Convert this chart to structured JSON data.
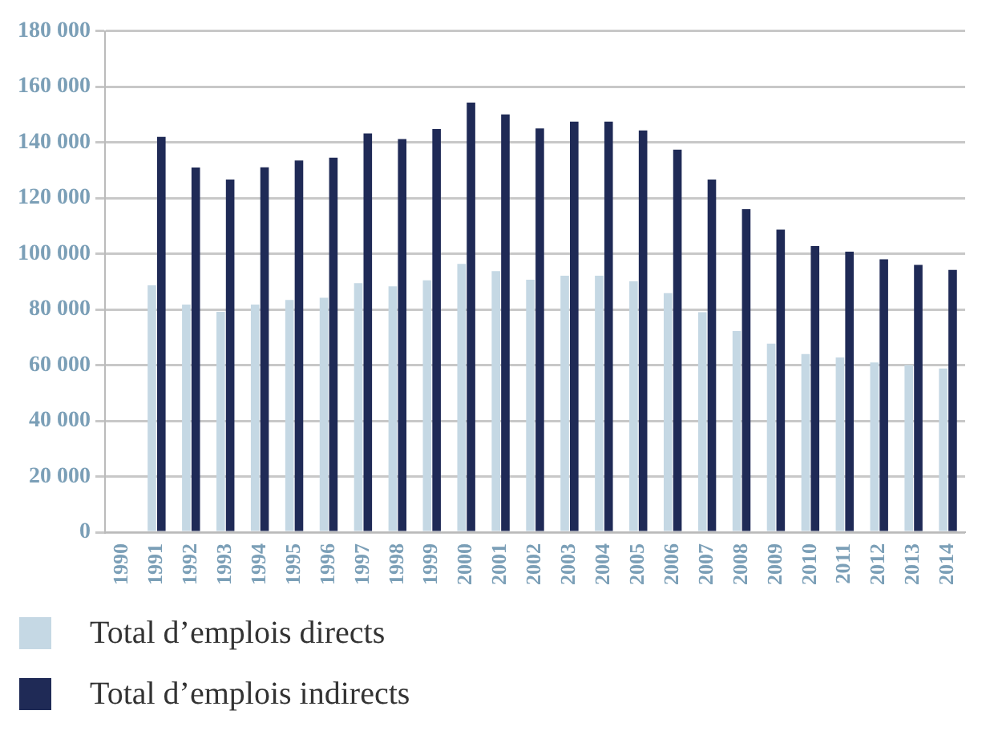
{
  "chart_data": {
    "type": "bar",
    "categories": [
      "1990",
      "1991",
      "1992",
      "1993",
      "1994",
      "1995",
      "1996",
      "1997",
      "1998",
      "1999",
      "2000",
      "2001",
      "2002",
      "2003",
      "2004",
      "2005",
      "2006",
      "2007",
      "2008",
      "2009",
      "2010",
      "2011",
      "2012",
      "2013",
      "2014"
    ],
    "series": [
      {
        "name": "Total d’emplois directs",
        "color": "#c5d8e4",
        "values": [
          null,
          88700,
          81800,
          79200,
          81800,
          83400,
          84200,
          89500,
          88300,
          90500,
          96400,
          93800,
          90700,
          92100,
          92100,
          90100,
          85900,
          79000,
          72300,
          67700,
          64000,
          62800,
          61000,
          60000,
          58800
        ]
      },
      {
        "name": "Total d’emplois indirects",
        "color": "#1f2a56",
        "values": [
          null,
          142000,
          131000,
          126700,
          131100,
          133500,
          134500,
          143200,
          141200,
          144800,
          154300,
          150100,
          145000,
          147500,
          147500,
          144300,
          137400,
          126700,
          116000,
          108700,
          102800,
          100800,
          98000,
          96000,
          94200
        ]
      }
    ],
    "ylim": [
      0,
      180000
    ],
    "yticks": [
      0,
      {
        "value": 20000,
        "label": "20 000"
      },
      {
        "value": 40000,
        "label": "40 000"
      },
      {
        "value": 60000,
        "label": "60 000"
      },
      {
        "value": 80000,
        "label": "80 000"
      },
      {
        "value": 100000,
        "label": "100 000"
      },
      {
        "value": 120000,
        "label": "120 000"
      },
      {
        "value": 140000,
        "label": "140 000"
      },
      {
        "value": 160000,
        "label": "160 000"
      },
      {
        "value": 180000,
        "label": "180 000"
      }
    ],
    "grid": "y",
    "legend": "bottom"
  }
}
